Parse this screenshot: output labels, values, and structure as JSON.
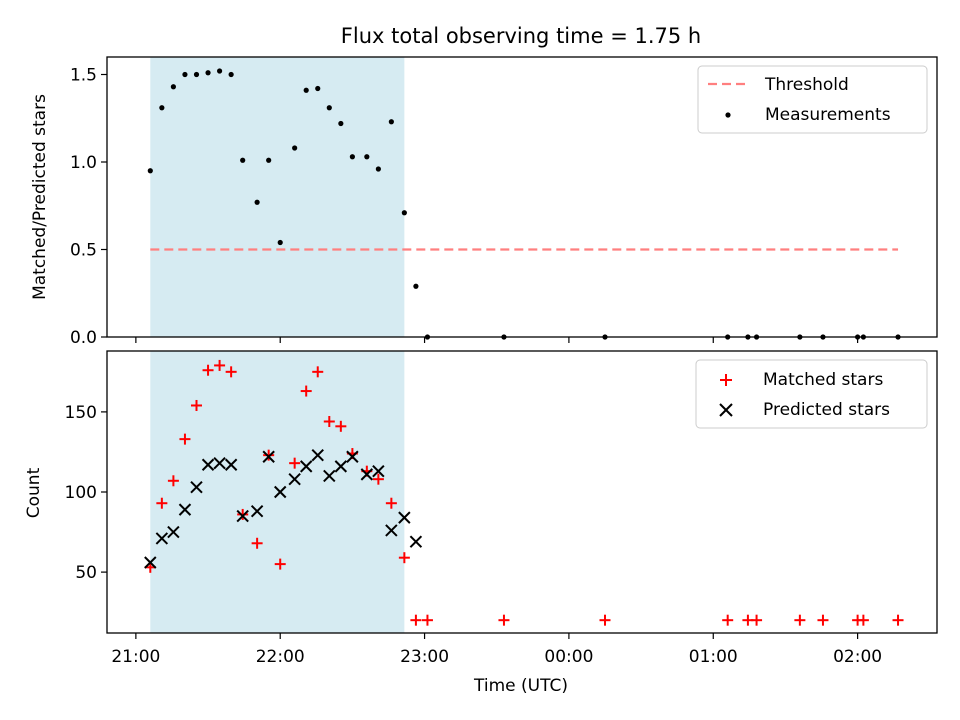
{
  "chart_data": {
    "type": "scatter",
    "title": "Flux total observing time = 1.75 h",
    "xlabel": "Time (UTC)",
    "x_unit": "hours",
    "x_ticks": [
      {
        "value": 21.0,
        "label": "21:00"
      },
      {
        "value": 22.0,
        "label": "22:00"
      },
      {
        "value": 23.0,
        "label": "23:00"
      },
      {
        "value": 24.0,
        "label": "00:00"
      },
      {
        "value": 25.0,
        "label": "01:00"
      },
      {
        "value": 26.0,
        "label": "02:00"
      }
    ],
    "xlim": [
      20.8,
      26.55
    ],
    "shaded_interval": [
      21.1,
      22.86
    ],
    "top": {
      "ylabel": "Matched/Predicted stars",
      "ylim": [
        0,
        1.6
      ],
      "y_ticks": [
        0.0,
        0.5,
        1.0,
        1.5
      ],
      "y_tick_labels": [
        "0.0",
        "0.5",
        "1.0",
        "1.5"
      ],
      "threshold": {
        "name": "Threshold",
        "value": 0.5,
        "x_range": [
          21.1,
          26.28
        ],
        "color": "#ff7f7f"
      },
      "measurements": {
        "name": "Measurements",
        "color": "#000000",
        "points": [
          [
            21.1,
            0.95
          ],
          [
            21.18,
            1.31
          ],
          [
            21.26,
            1.43
          ],
          [
            21.34,
            1.5
          ],
          [
            21.42,
            1.5
          ],
          [
            21.5,
            1.51
          ],
          [
            21.58,
            1.52
          ],
          [
            21.66,
            1.5
          ],
          [
            21.74,
            1.01
          ],
          [
            21.84,
            0.77
          ],
          [
            21.92,
            1.01
          ],
          [
            22.0,
            0.54
          ],
          [
            22.1,
            1.08
          ],
          [
            22.18,
            1.41
          ],
          [
            22.26,
            1.42
          ],
          [
            22.34,
            1.31
          ],
          [
            22.42,
            1.22
          ],
          [
            22.5,
            1.03
          ],
          [
            22.6,
            1.03
          ],
          [
            22.68,
            0.96
          ],
          [
            22.77,
            1.23
          ],
          [
            22.86,
            0.71
          ],
          [
            22.94,
            0.29
          ],
          [
            23.02,
            0.0
          ],
          [
            23.55,
            0.0
          ],
          [
            24.25,
            0.0
          ],
          [
            25.1,
            0.0
          ],
          [
            25.24,
            0.0
          ],
          [
            25.3,
            0.0
          ],
          [
            25.6,
            0.0
          ],
          [
            25.76,
            0.0
          ],
          [
            26.0,
            0.0
          ],
          [
            26.04,
            0.0
          ],
          [
            26.28,
            0.0
          ]
        ]
      },
      "legend_position": "top-right"
    },
    "bottom": {
      "ylabel": "Count",
      "ylim": [
        12,
        188
      ],
      "y_ticks": [
        50,
        100,
        150
      ],
      "y_tick_labels": [
        "50",
        "100",
        "150"
      ],
      "series": [
        {
          "name": "Matched stars",
          "marker": "plus",
          "color": "#ff0000",
          "points": [
            [
              21.1,
              53
            ],
            [
              21.18,
              93
            ],
            [
              21.26,
              107
            ],
            [
              21.34,
              133
            ],
            [
              21.42,
              154
            ],
            [
              21.5,
              176
            ],
            [
              21.58,
              179
            ],
            [
              21.66,
              175
            ],
            [
              21.74,
              86
            ],
            [
              21.84,
              68
            ],
            [
              21.92,
              123
            ],
            [
              22.0,
              55
            ],
            [
              22.1,
              118
            ],
            [
              22.18,
              163
            ],
            [
              22.26,
              175
            ],
            [
              22.34,
              144
            ],
            [
              22.42,
              141
            ],
            [
              22.5,
              124
            ],
            [
              22.6,
              113
            ],
            [
              22.68,
              108
            ],
            [
              22.77,
              93
            ],
            [
              22.86,
              59
            ],
            [
              22.94,
              20
            ],
            [
              23.02,
              20
            ],
            [
              23.55,
              20
            ],
            [
              24.25,
              20
            ],
            [
              25.1,
              20
            ],
            [
              25.24,
              20
            ],
            [
              25.3,
              20
            ],
            [
              25.6,
              20
            ],
            [
              25.76,
              20
            ],
            [
              26.0,
              20
            ],
            [
              26.04,
              20
            ],
            [
              26.28,
              20
            ]
          ]
        },
        {
          "name": "Predicted stars",
          "marker": "x",
          "color": "#000000",
          "points": [
            [
              21.1,
              56
            ],
            [
              21.18,
              71
            ],
            [
              21.26,
              75
            ],
            [
              21.34,
              89
            ],
            [
              21.42,
              103
            ],
            [
              21.5,
              117
            ],
            [
              21.58,
              118
            ],
            [
              21.66,
              117
            ],
            [
              21.74,
              85
            ],
            [
              21.84,
              88
            ],
            [
              21.92,
              122
            ],
            [
              22.0,
              100
            ],
            [
              22.1,
              108
            ],
            [
              22.18,
              116
            ],
            [
              22.26,
              123
            ],
            [
              22.34,
              110
            ],
            [
              22.42,
              116
            ],
            [
              22.5,
              122
            ],
            [
              22.6,
              111
            ],
            [
              22.68,
              113
            ],
            [
              22.77,
              76
            ],
            [
              22.86,
              84
            ],
            [
              22.94,
              69
            ]
          ]
        }
      ],
      "legend_position": "top-right"
    },
    "colors": {
      "shade": "#add8e6",
      "axis": "#000000",
      "background": "#ffffff"
    }
  }
}
